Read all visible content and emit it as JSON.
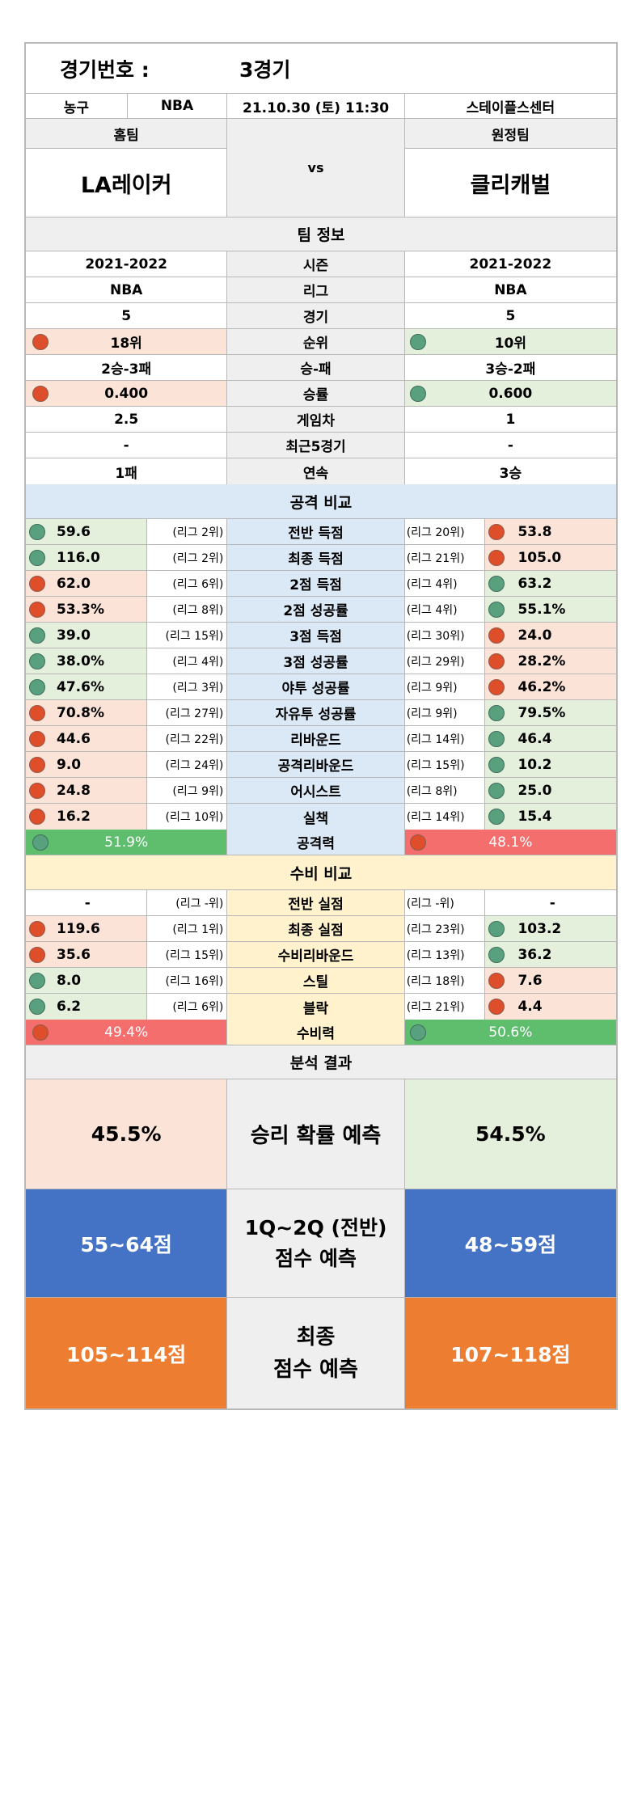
{
  "header": {
    "game_no_label": "경기번호 :",
    "game_no_value": "3경기"
  },
  "match_info": {
    "sport": "농구",
    "league": "NBA",
    "datetime": "21.10.30 (토) 11:30",
    "venue": "스테이플스센터"
  },
  "teams": {
    "home_label": "홈팀",
    "away_label": "원정팀",
    "home_name": "LA레이커",
    "away_name": "클리캐벌",
    "vs": "vs"
  },
  "team_info": {
    "section_title": "팀 정보",
    "rows": [
      {
        "label": "시즌",
        "home": "2021-2022",
        "away": "2021-2022"
      },
      {
        "label": "리그",
        "home": "NBA",
        "away": "NBA"
      },
      {
        "label": "경기",
        "home": "5",
        "away": "5"
      },
      {
        "label": "순위",
        "home": "18위",
        "away": "10위",
        "home_mark": "r",
        "away_mark": "g"
      },
      {
        "label": "승-패",
        "home": "2승-3패",
        "away": "3승-2패"
      },
      {
        "label": "승률",
        "home": "0.400",
        "away": "0.600",
        "home_mark": "r",
        "away_mark": "g"
      },
      {
        "label": "게임차",
        "home": "2.5",
        "away": "1"
      },
      {
        "label": "최근5경기",
        "home": "-",
        "away": "-"
      },
      {
        "label": "연속",
        "home": "1패",
        "away": "3승"
      }
    ]
  },
  "attack": {
    "section_title": "공격 비교",
    "rows": [
      {
        "label": "전반 득점",
        "home": "59.6",
        "home_rank": "(리그 2위)",
        "home_mark": "g",
        "away": "53.8",
        "away_rank": "(리그 20위)",
        "away_mark": "r"
      },
      {
        "label": "최종 득점",
        "home": "116.0",
        "home_rank": "(리그 2위)",
        "home_mark": "g",
        "away": "105.0",
        "away_rank": "(리그 21위)",
        "away_mark": "r"
      },
      {
        "label": "2점 득점",
        "home": "62.0",
        "home_rank": "(리그 6위)",
        "home_mark": "r",
        "away": "63.2",
        "away_rank": "(리그 4위)",
        "away_mark": "g"
      },
      {
        "label": "2점 성공률",
        "home": "53.3%",
        "home_rank": "(리그 8위)",
        "home_mark": "r",
        "away": "55.1%",
        "away_rank": "(리그 4위)",
        "away_mark": "g"
      },
      {
        "label": "3점 득점",
        "home": "39.0",
        "home_rank": "(리그 15위)",
        "home_mark": "g",
        "away": "24.0",
        "away_rank": "(리그 30위)",
        "away_mark": "r"
      },
      {
        "label": "3점 성공률",
        "home": "38.0%",
        "home_rank": "(리그 4위)",
        "home_mark": "g",
        "away": "28.2%",
        "away_rank": "(리그 29위)",
        "away_mark": "r"
      },
      {
        "label": "야투 성공률",
        "home": "47.6%",
        "home_rank": "(리그 3위)",
        "home_mark": "g",
        "away": "46.2%",
        "away_rank": "(리그 9위)",
        "away_mark": "r"
      },
      {
        "label": "자유투 성공률",
        "home": "70.8%",
        "home_rank": "(리그 27위)",
        "home_mark": "r",
        "away": "79.5%",
        "away_rank": "(리그 9위)",
        "away_mark": "g"
      },
      {
        "label": "리바운드",
        "home": "44.6",
        "home_rank": "(리그 22위)",
        "home_mark": "r",
        "away": "46.4",
        "away_rank": "(리그 14위)",
        "away_mark": "g"
      },
      {
        "label": "공격리바운드",
        "home": "9.0",
        "home_rank": "(리그 24위)",
        "home_mark": "r",
        "away": "10.2",
        "away_rank": "(리그 15위)",
        "away_mark": "g"
      },
      {
        "label": "어시스트",
        "home": "24.8",
        "home_rank": "(리그 9위)",
        "home_mark": "r",
        "away": "25.0",
        "away_rank": "(리그 8위)",
        "away_mark": "g"
      },
      {
        "label": "실책",
        "home": "16.2",
        "home_rank": "(리그 10위)",
        "home_mark": "r",
        "away": "15.4",
        "away_rank": "(리그 14위)",
        "away_mark": "g"
      }
    ],
    "power": {
      "label": "공격력",
      "home": "51.9%",
      "away": "48.1%",
      "home_color": "#5ebe6e",
      "away_color": "#f46e6e",
      "home_mark": "g",
      "away_mark": "r"
    }
  },
  "defense": {
    "section_title": "수비 비교",
    "rows": [
      {
        "label": "전반 실점",
        "home": "-",
        "home_rank": "(리그 -위)",
        "home_mark": "",
        "away": "-",
        "away_rank": "(리그 -위)",
        "away_mark": ""
      },
      {
        "label": "최종 실점",
        "home": "119.6",
        "home_rank": "(리그 1위)",
        "home_mark": "r",
        "away": "103.2",
        "away_rank": "(리그 23위)",
        "away_mark": "g"
      },
      {
        "label": "수비리바운드",
        "home": "35.6",
        "home_rank": "(리그 15위)",
        "home_mark": "r",
        "away": "36.2",
        "away_rank": "(리그 13위)",
        "away_mark": "g"
      },
      {
        "label": "스틸",
        "home": "8.0",
        "home_rank": "(리그 16위)",
        "home_mark": "g",
        "away": "7.6",
        "away_rank": "(리그 18위)",
        "away_mark": "r"
      },
      {
        "label": "블락",
        "home": "6.2",
        "home_rank": "(리그 6위)",
        "home_mark": "g",
        "away": "4.4",
        "away_rank": "(리그 21위)",
        "away_mark": "r"
      }
    ],
    "power": {
      "label": "수비력",
      "home": "49.4%",
      "away": "50.6%",
      "home_color": "#f46e6e",
      "away_color": "#5ebe6e",
      "home_mark": "r",
      "away_mark": "g"
    }
  },
  "analysis": {
    "section_title": "분석 결과",
    "win_label": "승리 확률 예측",
    "home_win": "45.5%",
    "away_win": "54.5%",
    "half_label_1": "1Q~2Q (전반)",
    "half_label_2": "점수 예측",
    "home_half": "55~64점",
    "away_half": "48~59점",
    "final_label_1": "최종",
    "final_label_2": "점수 예측",
    "home_final": "105~114점",
    "away_final": "107~118점"
  },
  "colors": {
    "red_mark": "#de4e2a",
    "green_mark": "#59a07f",
    "half_bg": "#4472c4",
    "final_bg": "#ed7d31",
    "pink_bg": "#fbe3d7",
    "green_bg": "#e4efdc",
    "blue_bg": "#dbe9f6",
    "yellow_bg": "#fff2cc"
  }
}
